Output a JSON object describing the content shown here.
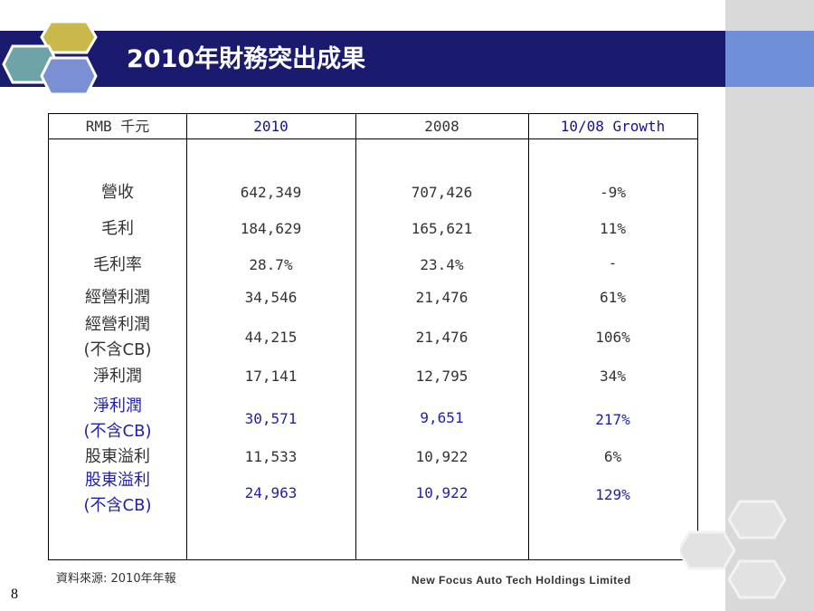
{
  "title": "2010年財務突出成果",
  "table": {
    "headers": [
      "RMB 千元",
      "2010",
      "2008",
      "10/08 Growth"
    ],
    "rows": [
      {
        "label": [
          "營收"
        ],
        "v2010": "642,349",
        "v2008": "707,426",
        "growth": "-9%",
        "highlight": false
      },
      {
        "label": [
          "毛利"
        ],
        "v2010": "184,629",
        "v2008": "165,621",
        "growth": "11%",
        "highlight": false
      },
      {
        "label": [
          "毛利率"
        ],
        "v2010": "28.7%",
        "v2008": "23.4%",
        "growth": "-",
        "highlight": false
      },
      {
        "label": [
          "經營利潤"
        ],
        "v2010": "34,546",
        "v2008": "21,476",
        "growth": "61%",
        "highlight": false
      },
      {
        "label": [
          "經營利潤",
          "(不含CB)"
        ],
        "v2010": "44,215",
        "v2008": "21,476",
        "growth": "106%",
        "highlight": false
      },
      {
        "label": [
          "淨利潤"
        ],
        "v2010": "17,141",
        "v2008": "12,795",
        "growth": "34%",
        "highlight": false
      },
      {
        "label": [
          "淨利潤",
          "(不含CB)"
        ],
        "v2010": "30,571",
        "v2008": "9,651",
        "growth": "217%",
        "highlight": true
      },
      {
        "label": [
          "股東溢利"
        ],
        "v2010": "11,533",
        "v2008": "10,922",
        "growth": "6%",
        "highlight": false
      },
      {
        "label": [
          "股東溢利",
          "(不含CB)"
        ],
        "v2010": "24,963",
        "v2008": "10,922",
        "growth": "129%",
        "highlight": true
      }
    ]
  },
  "footer": {
    "source": "資料來源: 2010年年報",
    "company": "New Focus Auto Tech Holdings Limited",
    "page_number": "8"
  },
  "colors": {
    "title_bar": "#1a1a6e",
    "title_bar_extension": "#6f8fd8",
    "highlight_text": "#1f1fa8",
    "hex_olive": "#c9b94a",
    "hex_teal": "#6ea3a8",
    "hex_blue": "#7b8fd3"
  }
}
